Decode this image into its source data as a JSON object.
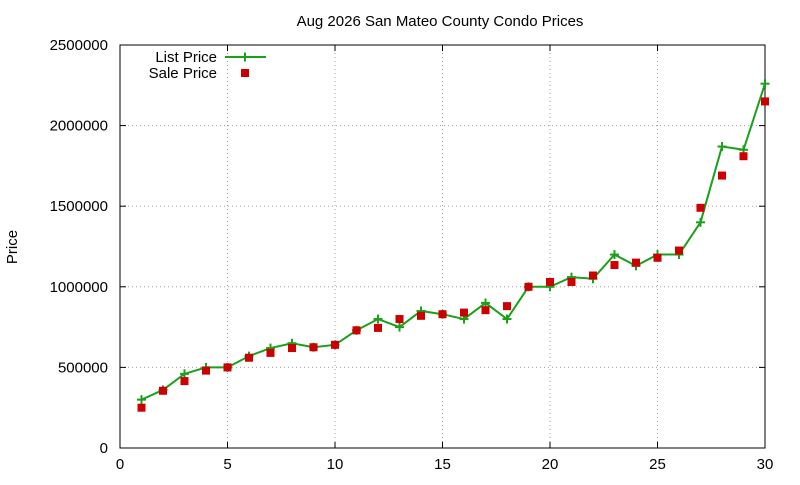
{
  "chart_data": {
    "type": "line",
    "title": "Aug 2026 San Mateo County Condo Prices",
    "xlabel": "",
    "ylabel": "Price",
    "xlim": [
      0,
      30
    ],
    "ylim": [
      0,
      2500000
    ],
    "x_ticks": [
      0,
      5,
      10,
      15,
      20,
      25,
      30
    ],
    "y_ticks": [
      0,
      500000,
      1000000,
      1500000,
      2000000,
      2500000
    ],
    "grid": true,
    "legend_position": "top-left",
    "series": [
      {
        "name": "List Price",
        "style": "line+plus-markers",
        "color": "#1aa01a",
        "x": [
          1,
          2,
          3,
          4,
          5,
          6,
          7,
          8,
          9,
          10,
          11,
          12,
          13,
          14,
          15,
          16,
          17,
          18,
          19,
          20,
          21,
          22,
          23,
          24,
          25,
          26,
          27,
          28,
          29,
          30
        ],
        "values": [
          300000,
          360000,
          460000,
          500000,
          500000,
          570000,
          620000,
          650000,
          625000,
          640000,
          730000,
          800000,
          750000,
          850000,
          830000,
          800000,
          900000,
          800000,
          1000000,
          1000000,
          1060000,
          1050000,
          1200000,
          1130000,
          1200000,
          1200000,
          1400000,
          1870000,
          1850000,
          2260000
        ]
      },
      {
        "name": "Sale Price",
        "style": "square-markers",
        "color": "#cc0000",
        "x": [
          1,
          2,
          3,
          4,
          5,
          6,
          7,
          8,
          9,
          10,
          11,
          12,
          13,
          14,
          15,
          16,
          17,
          18,
          19,
          20,
          21,
          22,
          23,
          24,
          25,
          26,
          27,
          28,
          29,
          30
        ],
        "values": [
          250000,
          355000,
          415000,
          480000,
          500000,
          560000,
          590000,
          620000,
          625000,
          640000,
          730000,
          745000,
          800000,
          820000,
          830000,
          840000,
          855000,
          880000,
          1000000,
          1030000,
          1030000,
          1070000,
          1135000,
          1150000,
          1180000,
          1225000,
          1490000,
          1690000,
          1810000,
          2150000
        ]
      }
    ]
  }
}
